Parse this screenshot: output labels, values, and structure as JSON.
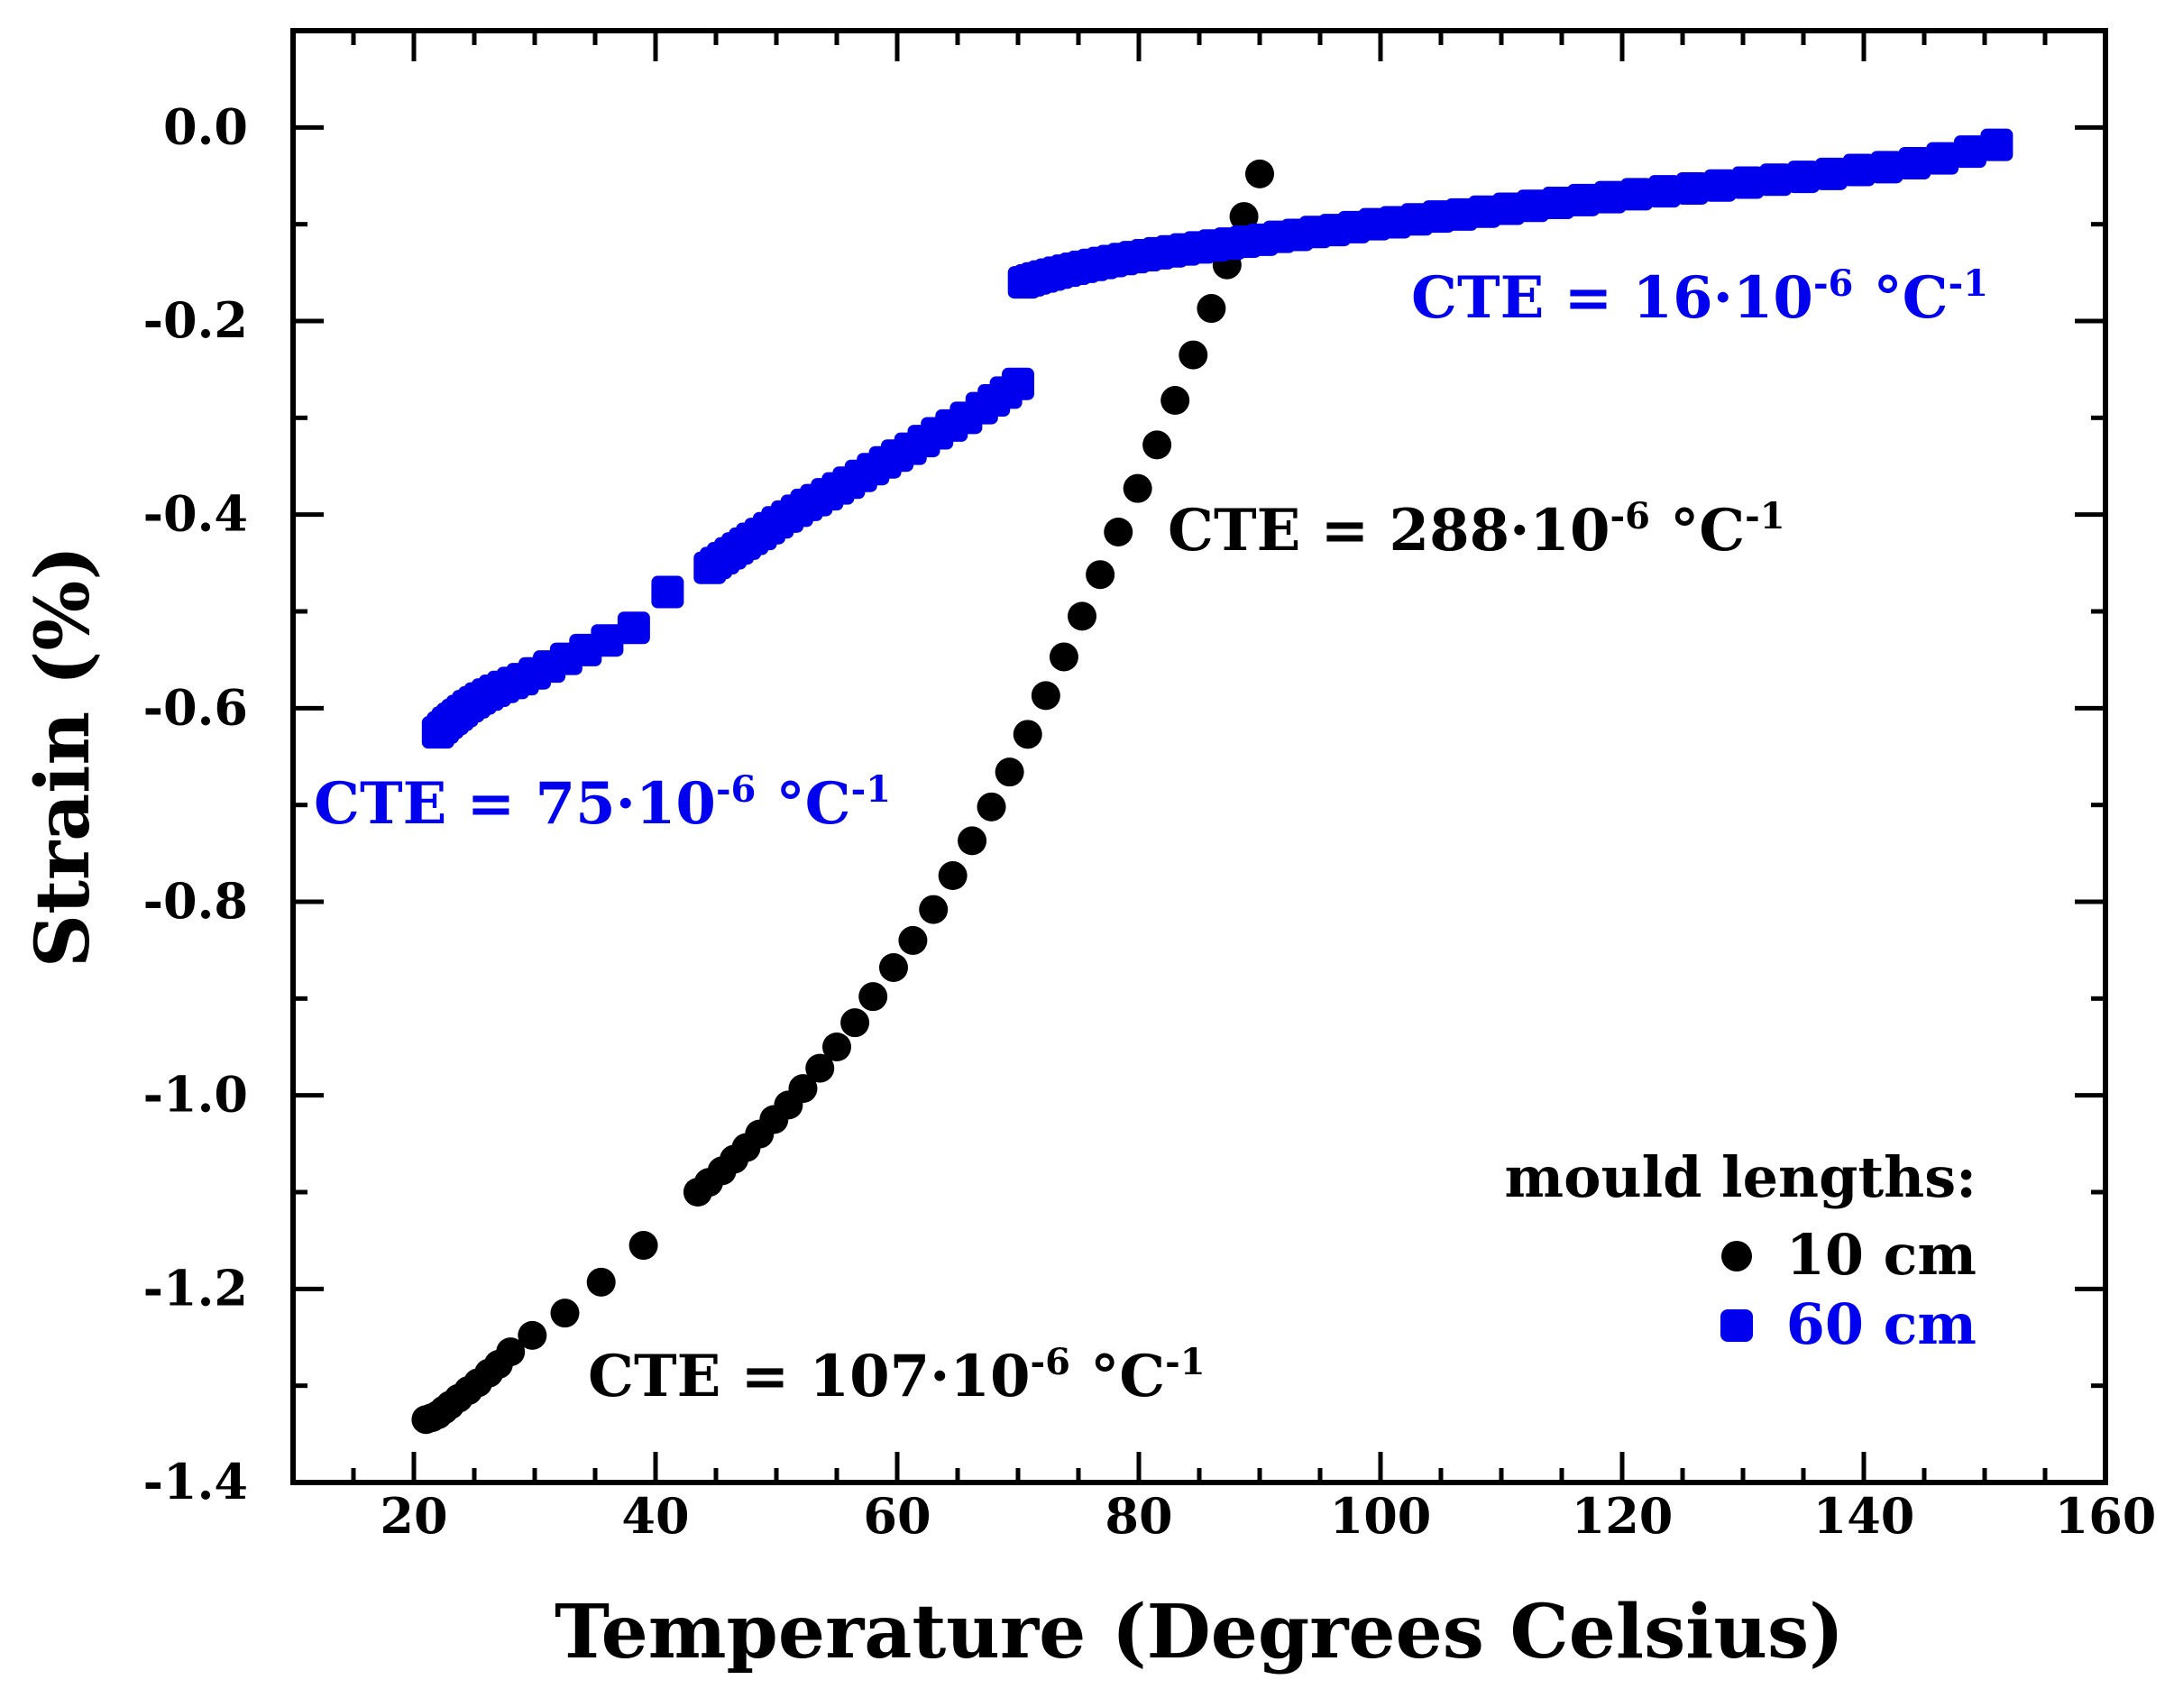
{
  "chart_data": {
    "type": "scatter",
    "xlabel": "Temperature (Degrees Celsius)",
    "ylabel": "Strain (%)",
    "xlim": [
      10,
      160
    ],
    "ylim": [
      -1.4,
      0.1
    ],
    "xticks": [
      20,
      40,
      60,
      80,
      100,
      120,
      140,
      160
    ],
    "xtick_labels": [
      "20",
      "40",
      "60",
      "80",
      "100",
      "120",
      "140",
      "160"
    ],
    "yticks": [
      0.0,
      -0.2,
      -0.4,
      -0.6,
      -0.8,
      -1.0,
      -1.2,
      -1.4
    ],
    "ytick_labels": [
      "0.0",
      "-0.2",
      "-0.4",
      "-0.6",
      "-0.8",
      "-1.0",
      "-1.2",
      "-1.4"
    ],
    "colors": {
      "black": "#000000",
      "blue": "#0000ee"
    },
    "series": [
      {
        "name": "10 cm",
        "color": "#000000",
        "marker": "circle",
        "x": [
          21.0,
          21.5,
          22.0,
          22.5,
          23.0,
          23.7,
          24.5,
          25.3,
          26.2,
          27.0,
          28.0,
          29.8,
          32.5,
          35.5,
          39.0,
          43.5,
          44.4,
          45.5,
          46.5,
          47.5,
          48.6,
          49.8,
          51.0,
          52.2,
          53.6,
          55.0,
          56.5,
          58.0,
          59.7,
          61.3,
          63.0,
          64.6,
          66.2,
          67.8,
          69.3,
          70.8,
          72.3,
          73.8,
          75.3,
          76.8,
          78.3,
          79.9,
          81.5,
          83.0,
          84.5,
          86.0,
          87.3,
          88.7,
          90.0
        ],
        "y": [
          -1.335,
          -1.333,
          -1.33,
          -1.325,
          -1.32,
          -1.313,
          -1.305,
          -1.297,
          -1.287,
          -1.278,
          -1.265,
          -1.248,
          -1.225,
          -1.193,
          -1.155,
          -1.1,
          -1.09,
          -1.078,
          -1.066,
          -1.054,
          -1.04,
          -1.025,
          -1.01,
          -0.993,
          -0.972,
          -0.95,
          -0.925,
          -0.898,
          -0.868,
          -0.84,
          -0.808,
          -0.773,
          -0.737,
          -0.702,
          -0.666,
          -0.627,
          -0.587,
          -0.547,
          -0.505,
          -0.462,
          -0.418,
          -0.373,
          -0.328,
          -0.282,
          -0.235,
          -0.187,
          -0.142,
          -0.092,
          -0.048
        ]
      },
      {
        "name": "60 cm",
        "color": "#0000ee",
        "marker": "rounded-square",
        "x": [
          22.0,
          22.4,
          22.8,
          23.2,
          23.6,
          24.0,
          24.5,
          25.0,
          25.5,
          26.1,
          26.7,
          27.4,
          28.2,
          29.0,
          30.0,
          31.2,
          32.6,
          34.2,
          36.0,
          38.2,
          41.0,
          44.5,
          45.0,
          45.6,
          46.2,
          46.8,
          47.4,
          48.0,
          48.7,
          49.4,
          50.1,
          50.9,
          51.7,
          52.5,
          53.3,
          54.2,
          55.1,
          56.0,
          57.0,
          58.0,
          59.0,
          60.0,
          61.1,
          62.2,
          63.3,
          64.5,
          65.7,
          67.0,
          68.0,
          69.0,
          70.0,
          70.5,
          71.0,
          71.5,
          72.1,
          72.7,
          73.3,
          74.0,
          74.7,
          75.4,
          76.2,
          77.0,
          77.8,
          78.7,
          79.6,
          80.6,
          81.6,
          82.7,
          83.8,
          85.0,
          86.2,
          87.5,
          88.8,
          90.2,
          91.6,
          93.1,
          94.6,
          96.2,
          97.8,
          99.5,
          101.2,
          103.0,
          104.8,
          106.7,
          108.6,
          110.6,
          112.6,
          114.7,
          116.8,
          119.0,
          121.2,
          123.5,
          125.8,
          128.1,
          130.4,
          132.7,
          135.0,
          137.3,
          139.6,
          141.9,
          144.2,
          146.5,
          148.8,
          151.0
        ],
        "y": [
          -0.625,
          -0.62,
          -0.615,
          -0.611,
          -0.607,
          -0.603,
          -0.598,
          -0.594,
          -0.59,
          -0.586,
          -0.582,
          -0.578,
          -0.574,
          -0.57,
          -0.564,
          -0.557,
          -0.549,
          -0.54,
          -0.53,
          -0.517,
          -0.48,
          -0.455,
          -0.45,
          -0.445,
          -0.44,
          -0.435,
          -0.43,
          -0.425,
          -0.42,
          -0.414,
          -0.408,
          -0.402,
          -0.396,
          -0.39,
          -0.385,
          -0.379,
          -0.373,
          -0.367,
          -0.36,
          -0.353,
          -0.346,
          -0.339,
          -0.332,
          -0.324,
          -0.316,
          -0.308,
          -0.3,
          -0.29,
          -0.282,
          -0.274,
          -0.265,
          -0.16,
          -0.158,
          -0.156,
          -0.154,
          -0.152,
          -0.15,
          -0.148,
          -0.146,
          -0.144,
          -0.142,
          -0.14,
          -0.138,
          -0.136,
          -0.134,
          -0.132,
          -0.13,
          -0.128,
          -0.126,
          -0.124,
          -0.122,
          -0.12,
          -0.118,
          -0.116,
          -0.113,
          -0.111,
          -0.108,
          -0.106,
          -0.103,
          -0.1,
          -0.098,
          -0.095,
          -0.092,
          -0.09,
          -0.087,
          -0.084,
          -0.081,
          -0.078,
          -0.075,
          -0.072,
          -0.069,
          -0.066,
          -0.063,
          -0.06,
          -0.057,
          -0.054,
          -0.051,
          -0.048,
          -0.044,
          -0.041,
          -0.037,
          -0.032,
          -0.025,
          -0.018
        ]
      }
    ],
    "annotations": [
      {
        "id": "cte75",
        "color": "#0000ee",
        "pre": "CTE = 75·10",
        "exp": "-6",
        "mid": " °C",
        "exp2": "-1"
      },
      {
        "id": "cte16",
        "color": "#0000ee",
        "pre": "CTE = 16·10",
        "exp": "-6",
        "mid": " °C",
        "exp2": "-1"
      },
      {
        "id": "cte288",
        "color": "#000000",
        "pre": "CTE = 288·10",
        "exp": "-6",
        "mid": " °C",
        "exp2": "-1"
      },
      {
        "id": "cte107",
        "color": "#000000",
        "pre": "CTE = 107·10",
        "exp": "-6",
        "mid": " °C",
        "exp2": "-1"
      }
    ],
    "legend": {
      "title": "mould lengths:",
      "placement": "bottom-right",
      "entries": [
        {
          "label": "10 cm",
          "color": "#000000",
          "marker": "circle"
        },
        {
          "label": "60 cm",
          "color": "#0000ee",
          "marker": "rounded-square"
        }
      ]
    }
  }
}
